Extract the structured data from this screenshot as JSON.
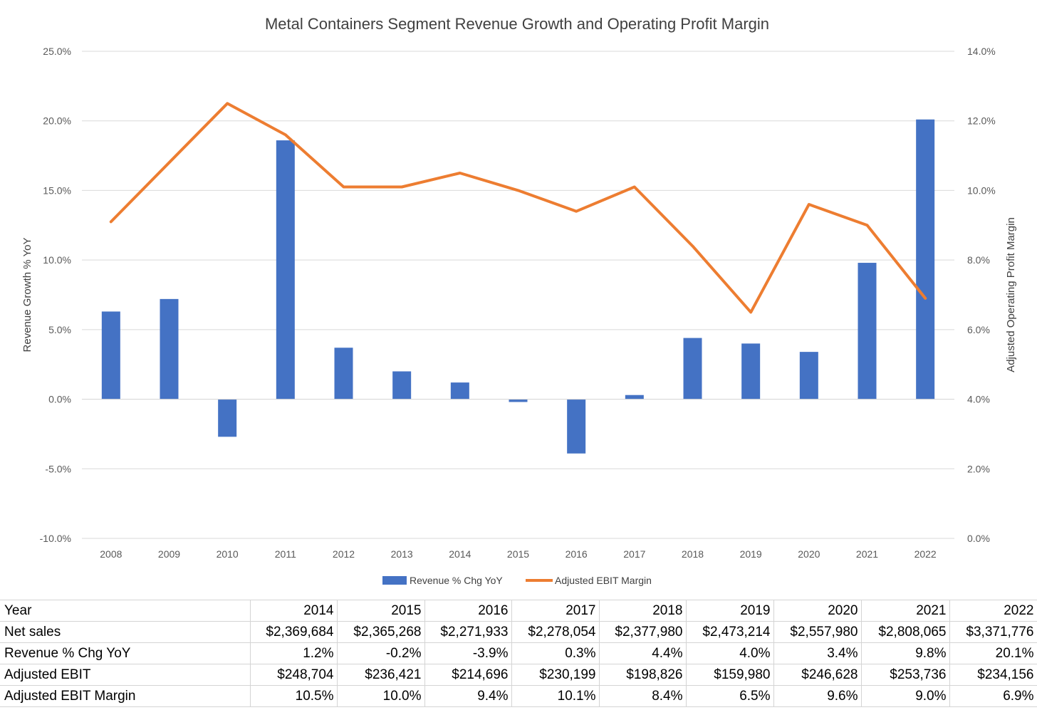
{
  "chart_data": {
    "type": "bar",
    "title": "Metal Containers Segment Revenue Growth and Operating Profit Margin",
    "ylabel": "Revenue Growth % YoY",
    "y2label": "Adjusted Operating Profit Margin",
    "categories": [
      "2008",
      "2009",
      "2010",
      "2011",
      "2012",
      "2013",
      "2014",
      "2015",
      "2016",
      "2017",
      "2018",
      "2019",
      "2020",
      "2021",
      "2022"
    ],
    "ylim": [
      -10,
      25
    ],
    "y2lim": [
      0,
      14
    ],
    "yticks": [
      "-10.0%",
      "-5.0%",
      "0.0%",
      "5.0%",
      "10.0%",
      "15.0%",
      "20.0%",
      "25.0%"
    ],
    "y2ticks": [
      "0.0%",
      "2.0%",
      "4.0%",
      "6.0%",
      "8.0%",
      "10.0%",
      "12.0%",
      "14.0%"
    ],
    "grid": true,
    "legend_position": "bottom",
    "series": [
      {
        "name": "Revenue % Chg YoY",
        "type": "bar",
        "axis": "left",
        "color": "#4472c4",
        "values": [
          6.3,
          7.2,
          -2.7,
          18.6,
          3.7,
          2.0,
          1.2,
          -0.2,
          -3.9,
          0.3,
          4.4,
          4.0,
          3.4,
          9.8,
          20.1
        ]
      },
      {
        "name": "Adjusted EBIT Margin",
        "type": "line",
        "axis": "right",
        "color": "#ed7d31",
        "values": [
          9.1,
          10.8,
          12.5,
          11.6,
          10.1,
          10.1,
          10.5,
          10.0,
          9.4,
          10.1,
          8.4,
          6.5,
          9.6,
          9.0,
          6.9
        ]
      }
    ]
  },
  "table": {
    "header_label": "Year",
    "years": [
      "2014",
      "2015",
      "2016",
      "2017",
      "2018",
      "2019",
      "2020",
      "2021",
      "2022"
    ],
    "rows": [
      {
        "label": "Net sales",
        "values": [
          "$2,369,684",
          "$2,365,268",
          "$2,271,933",
          "$2,278,054",
          "$2,377,980",
          "$2,473,214",
          "$2,557,980",
          "$2,808,065",
          "$3,371,776"
        ]
      },
      {
        "label": "Revenue % Chg YoY",
        "values": [
          "1.2%",
          "-0.2%",
          "-3.9%",
          "0.3%",
          "4.4%",
          "4.0%",
          "3.4%",
          "9.8%",
          "20.1%"
        ]
      },
      {
        "label": "Adjusted EBIT",
        "values": [
          "$248,704",
          "$236,421",
          "$214,696",
          "$230,199",
          "$198,826",
          "$159,980",
          "$246,628",
          "$253,736",
          "$234,156"
        ]
      },
      {
        "label": "Adjusted EBIT Margin",
        "values": [
          "10.5%",
          "10.0%",
          "9.4%",
          "10.1%",
          "8.4%",
          "6.5%",
          "9.6%",
          "9.0%",
          "6.9%"
        ]
      }
    ]
  }
}
